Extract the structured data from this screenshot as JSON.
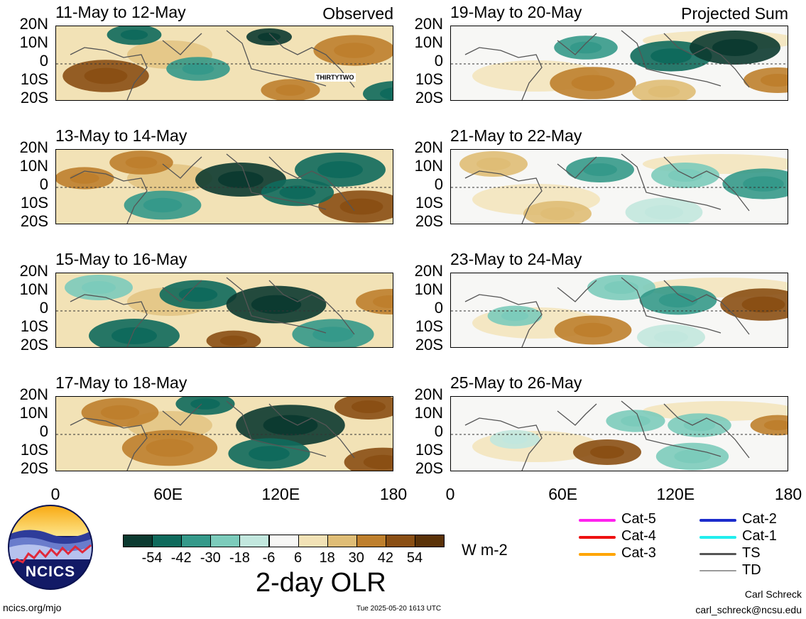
{
  "observed_label": "Observed",
  "projected_label": "Projected Sum",
  "annotation": "THIRTYTWO",
  "panels": [
    {
      "title": "11-May to 12-May",
      "column": "observed",
      "row": 0
    },
    {
      "title": "13-May to 14-May",
      "column": "observed",
      "row": 1
    },
    {
      "title": "15-May to 16-May",
      "column": "observed",
      "row": 2
    },
    {
      "title": "17-May to 18-May",
      "column": "observed",
      "row": 3
    },
    {
      "title": "19-May to 20-May",
      "column": "projected",
      "row": 0
    },
    {
      "title": "21-May to 22-May",
      "column": "projected",
      "row": 1
    },
    {
      "title": "23-May to 24-May",
      "column": "projected",
      "row": 2
    },
    {
      "title": "25-May to 26-May",
      "column": "projected",
      "row": 3
    }
  ],
  "lat_labels": [
    "20N",
    "10N",
    "0",
    "10S",
    "20S"
  ],
  "lon_labels": [
    "0",
    "60E",
    "120E",
    "180"
  ],
  "colorbar": {
    "labels": [
      "-54",
      "-42",
      "-30",
      "-18",
      "-6",
      "6",
      "18",
      "30",
      "42",
      "54"
    ],
    "colors": [
      "#0c3a30",
      "#0f6a5c",
      "#35998a",
      "#7ccbbb",
      "#c2e7de",
      "#f7f7f5",
      "#f2e2b6",
      "#dfbd76",
      "#be7f2d",
      "#8a4f14",
      "#5a3208"
    ]
  },
  "units": "W m-2",
  "title": "2-day OLR",
  "legend": [
    {
      "label": "Cat-5",
      "color": "#ff22ee"
    },
    {
      "label": "Cat-4",
      "color": "#ee1111"
    },
    {
      "label": "Cat-3",
      "color": "#ffa500"
    },
    {
      "label": "Cat-2",
      "color": "#1c2ccc"
    },
    {
      "label": "Cat-1",
      "color": "#22eeee"
    },
    {
      "label": "TS",
      "color": "#555555"
    },
    {
      "label": "TD",
      "color": "#9a9a9a"
    }
  ],
  "logo_text": "NCICS",
  "footer": {
    "url": "ncics.org/mjo",
    "timestamp": "Tue 2025-05-20 1613 UTC",
    "author": "Carl Schreck",
    "email": "carl_schreck@ncsu.edu"
  }
}
